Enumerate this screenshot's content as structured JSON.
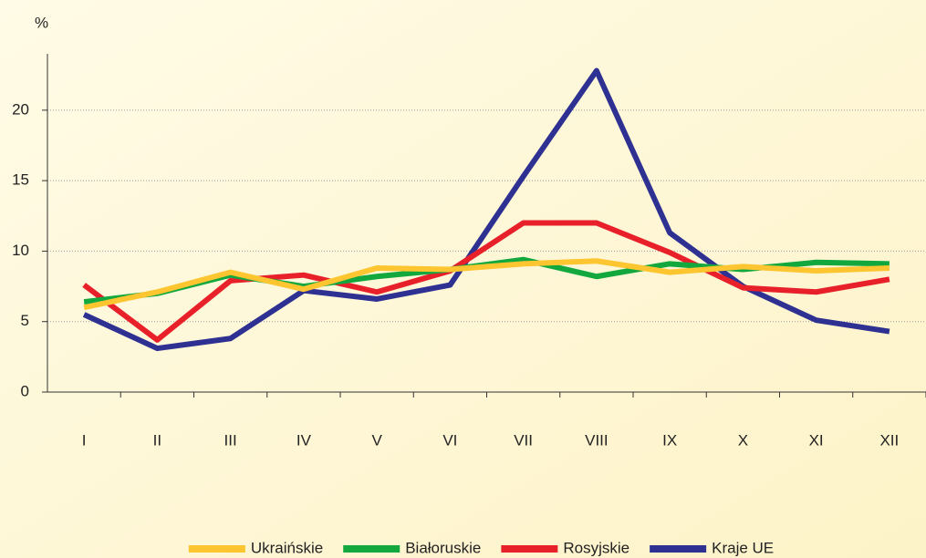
{
  "chart_data": {
    "type": "line",
    "y_label": "%",
    "categories": [
      "I",
      "II",
      "III",
      "IV",
      "V",
      "VI",
      "VII",
      "VIII",
      "IX",
      "X",
      "XI",
      "XII"
    ],
    "series": [
      {
        "name": "Ukraińskie",
        "color": "#fdc530",
        "values": [
          6.0,
          7.1,
          8.5,
          7.3,
          8.8,
          8.7,
          9.1,
          9.3,
          8.5,
          8.9,
          8.6,
          8.8
        ]
      },
      {
        "name": "Białoruskie",
        "color": "#13a83e",
        "values": [
          6.4,
          7.0,
          8.3,
          7.5,
          8.2,
          8.7,
          9.4,
          8.2,
          9.1,
          8.7,
          9.2,
          9.1
        ]
      },
      {
        "name": "Rosyjskie",
        "color": "#e8202a",
        "values": [
          7.6,
          3.7,
          7.9,
          8.3,
          7.1,
          8.6,
          12.0,
          12.0,
          9.9,
          7.4,
          7.1,
          8.0
        ]
      },
      {
        "name": "Kraje UE",
        "color": "#2e3192",
        "values": [
          5.5,
          3.1,
          3.8,
          7.2,
          6.6,
          7.6,
          15.3,
          22.8,
          11.3,
          7.5,
          5.1,
          4.3
        ]
      }
    ],
    "ylim": [
      0,
      24
    ],
    "yticks": [
      0,
      5,
      10,
      15,
      20
    ],
    "grid": true,
    "legend": "bottom"
  }
}
